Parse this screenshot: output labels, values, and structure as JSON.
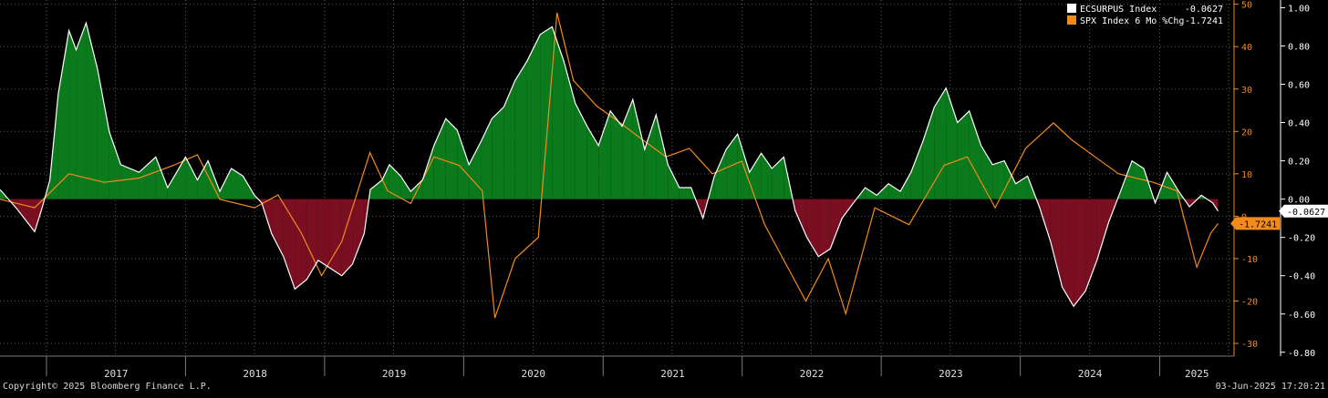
{
  "footer": {
    "copyright": "Copyright© 2025 Bloomberg Finance L.P.",
    "timestamp": "03-Jun-2025 17:20:21"
  },
  "colors": {
    "background": "#000000",
    "grid": "#5a5a5a",
    "surprise_line": "#ffffff",
    "positive_fill": "#0b7a1c",
    "negative_fill": "#7a0f22",
    "spx_line": "#f28a1c",
    "left_axis": "#f28a1c",
    "right_axis": "#ffffff"
  },
  "chart_data": {
    "type": "line",
    "x_axis": {
      "labels": [
        "2017",
        "2018",
        "2019",
        "2020",
        "2021",
        "2022",
        "2023",
        "2024",
        "2025"
      ],
      "range": [
        "2016-09-01",
        "2025-07-15"
      ]
    },
    "y_left": {
      "ticks": [
        50,
        40,
        30,
        20,
        10,
        0,
        -10,
        -20,
        -30
      ],
      "range": [
        -33,
        51
      ]
    },
    "y_right": {
      "ticks": [
        "1.00",
        "0.80",
        "0.60",
        "0.40",
        "0.20",
        "0.00",
        "-0.20",
        "-0.40",
        "-0.60",
        "-0.80"
      ],
      "range": [
        -0.82,
        1.04
      ]
    },
    "grid": true,
    "legend_position": "top-right",
    "legend": [
      {
        "name": "ECSURPUS Index",
        "value": "-0.0627",
        "color": "#ffffff"
      },
      {
        "name": "SPX Index 6 Mo %Chg",
        "value": "-1.7241",
        "color": "#f28a1c"
      }
    ],
    "last_value_labels": {
      "left": "-1.7241",
      "right": "-0.0627"
    },
    "series": [
      {
        "name": "ECSURPUS Index",
        "axis": "right",
        "style": "area-line",
        "points": [
          [
            "2016-09-01",
            0.05
          ],
          [
            "2016-10-15",
            -0.05
          ],
          [
            "2016-12-01",
            -0.17
          ],
          [
            "2016-12-20",
            -0.05
          ],
          [
            "2017-01-10",
            0.1
          ],
          [
            "2017-02-01",
            0.55
          ],
          [
            "2017-03-01",
            0.88
          ],
          [
            "2017-03-20",
            0.78
          ],
          [
            "2017-04-15",
            0.92
          ],
          [
            "2017-05-15",
            0.68
          ],
          [
            "2017-06-15",
            0.35
          ],
          [
            "2017-07-15",
            0.18
          ],
          [
            "2017-09-01",
            0.14
          ],
          [
            "2017-10-15",
            0.22
          ],
          [
            "2017-11-15",
            0.06
          ],
          [
            "2018-01-01",
            0.22
          ],
          [
            "2018-02-01",
            0.1
          ],
          [
            "2018-03-01",
            0.2
          ],
          [
            "2018-04-01",
            0.04
          ],
          [
            "2018-05-01",
            0.16
          ],
          [
            "2018-06-01",
            0.12
          ],
          [
            "2018-07-01",
            0.02
          ],
          [
            "2018-07-20",
            -0.02
          ],
          [
            "2018-08-15",
            -0.18
          ],
          [
            "2018-09-15",
            -0.3
          ],
          [
            "2018-10-15",
            -0.47
          ],
          [
            "2018-11-15",
            -0.42
          ],
          [
            "2018-12-15",
            -0.32
          ],
          [
            "2019-01-15",
            -0.36
          ],
          [
            "2019-02-15",
            -0.4
          ],
          [
            "2019-03-15",
            -0.34
          ],
          [
            "2019-04-15",
            -0.18
          ],
          [
            "2019-05-01",
            0.05
          ],
          [
            "2019-06-01",
            0.1
          ],
          [
            "2019-06-20",
            0.18
          ],
          [
            "2019-07-20",
            0.12
          ],
          [
            "2019-08-15",
            0.04
          ],
          [
            "2019-09-15",
            0.1
          ],
          [
            "2019-10-15",
            0.28
          ],
          [
            "2019-11-15",
            0.42
          ],
          [
            "2019-12-15",
            0.36
          ],
          [
            "2020-01-15",
            0.18
          ],
          [
            "2020-02-15",
            0.3
          ],
          [
            "2020-03-15",
            0.42
          ],
          [
            "2020-04-15",
            0.48
          ],
          [
            "2020-05-15",
            0.62
          ],
          [
            "2020-06-15",
            0.72
          ],
          [
            "2020-07-20",
            0.86
          ],
          [
            "2020-08-20",
            0.9
          ],
          [
            "2020-09-20",
            0.72
          ],
          [
            "2020-10-20",
            0.5
          ],
          [
            "2020-11-20",
            0.38
          ],
          [
            "2020-12-20",
            0.28
          ],
          [
            "2021-01-20",
            0.46
          ],
          [
            "2021-02-20",
            0.38
          ],
          [
            "2021-03-20",
            0.52
          ],
          [
            "2021-04-20",
            0.26
          ],
          [
            "2021-05-20",
            0.44
          ],
          [
            "2021-06-20",
            0.18
          ],
          [
            "2021-07-20",
            0.06
          ],
          [
            "2021-08-20",
            0.06
          ],
          [
            "2021-09-20",
            -0.1
          ],
          [
            "2021-10-20",
            0.12
          ],
          [
            "2021-11-20",
            0.26
          ],
          [
            "2021-12-20",
            0.34
          ],
          [
            "2022-01-20",
            0.14
          ],
          [
            "2022-02-20",
            0.24
          ],
          [
            "2022-03-20",
            0.16
          ],
          [
            "2022-04-20",
            0.22
          ],
          [
            "2022-05-20",
            -0.06
          ],
          [
            "2022-06-20",
            -0.2
          ],
          [
            "2022-07-20",
            -0.3
          ],
          [
            "2022-08-20",
            -0.26
          ],
          [
            "2022-09-20",
            -0.1
          ],
          [
            "2022-10-20",
            -0.02
          ],
          [
            "2022-11-20",
            0.06
          ],
          [
            "2022-12-20",
            0.02
          ],
          [
            "2023-01-20",
            0.08
          ],
          [
            "2023-02-20",
            0.04
          ],
          [
            "2023-03-20",
            0.14
          ],
          [
            "2023-04-20",
            0.3
          ],
          [
            "2023-05-20",
            0.48
          ],
          [
            "2023-06-20",
            0.58
          ],
          [
            "2023-07-20",
            0.4
          ],
          [
            "2023-08-20",
            0.46
          ],
          [
            "2023-09-20",
            0.28
          ],
          [
            "2023-10-20",
            0.18
          ],
          [
            "2023-11-20",
            0.2
          ],
          [
            "2023-12-20",
            0.08
          ],
          [
            "2024-01-20",
            0.12
          ],
          [
            "2024-02-20",
            -0.04
          ],
          [
            "2024-03-20",
            -0.22
          ],
          [
            "2024-04-20",
            -0.46
          ],
          [
            "2024-05-20",
            -0.56
          ],
          [
            "2024-06-20",
            -0.48
          ],
          [
            "2024-07-20",
            -0.32
          ],
          [
            "2024-08-20",
            -0.12
          ],
          [
            "2024-09-20",
            0.04
          ],
          [
            "2024-10-20",
            0.2
          ],
          [
            "2024-11-20",
            0.16
          ],
          [
            "2024-12-20",
            -0.02
          ],
          [
            "2025-01-20",
            0.14
          ],
          [
            "2025-02-20",
            0.04
          ],
          [
            "2025-03-20",
            -0.04
          ],
          [
            "2025-04-20",
            0.02
          ],
          [
            "2025-05-20",
            -0.02
          ],
          [
            "2025-06-03",
            -0.0627
          ]
        ]
      },
      {
        "name": "SPX Index 6 Mo %Chg",
        "axis": "left",
        "style": "line",
        "points": [
          [
            "2016-09-01",
            4.0
          ],
          [
            "2016-12-01",
            2.0
          ],
          [
            "2017-03-01",
            10.0
          ],
          [
            "2017-06-01",
            8.0
          ],
          [
            "2017-09-01",
            9.0
          ],
          [
            "2017-12-01",
            12.0
          ],
          [
            "2018-02-01",
            14.5
          ],
          [
            "2018-04-01",
            4.0
          ],
          [
            "2018-07-01",
            2.0
          ],
          [
            "2018-09-01",
            5.0
          ],
          [
            "2018-11-01",
            -4.0
          ],
          [
            "2018-12-24",
            -14.0
          ],
          [
            "2019-02-15",
            -6.0
          ],
          [
            "2019-04-30",
            15.0
          ],
          [
            "2019-06-15",
            6.0
          ],
          [
            "2019-08-15",
            3.0
          ],
          [
            "2019-10-15",
            14.0
          ],
          [
            "2019-12-20",
            12.0
          ],
          [
            "2020-02-19",
            6.0
          ],
          [
            "2020-03-23",
            -24.0
          ],
          [
            "2020-05-15",
            -10.0
          ],
          [
            "2020-07-15",
            -5.0
          ],
          [
            "2020-09-02",
            48.0
          ],
          [
            "2020-10-15",
            32.0
          ],
          [
            "2020-12-15",
            26.0
          ],
          [
            "2021-02-15",
            22.0
          ],
          [
            "2021-04-15",
            18.0
          ],
          [
            "2021-06-15",
            14.0
          ],
          [
            "2021-08-15",
            16.0
          ],
          [
            "2021-10-15",
            10.0
          ],
          [
            "2021-12-31",
            13.0
          ],
          [
            "2022-03-01",
            -2.0
          ],
          [
            "2022-06-17",
            -20.0
          ],
          [
            "2022-08-15",
            -10.0
          ],
          [
            "2022-09-30",
            -23.0
          ],
          [
            "2022-12-15",
            2.0
          ],
          [
            "2023-03-15",
            -2.0
          ],
          [
            "2023-06-15",
            12.0
          ],
          [
            "2023-08-15",
            14.0
          ],
          [
            "2023-10-27",
            2.0
          ],
          [
            "2024-01-15",
            16.0
          ],
          [
            "2024-03-28",
            22.0
          ],
          [
            "2024-05-15",
            18.0
          ],
          [
            "2024-07-15",
            14.0
          ],
          [
            "2024-09-15",
            10.0
          ],
          [
            "2024-12-15",
            8.0
          ],
          [
            "2025-02-15",
            6.0
          ],
          [
            "2025-04-08",
            -12.0
          ],
          [
            "2025-05-15",
            -4.0
          ],
          [
            "2025-06-03",
            -1.7241
          ]
        ]
      }
    ]
  }
}
